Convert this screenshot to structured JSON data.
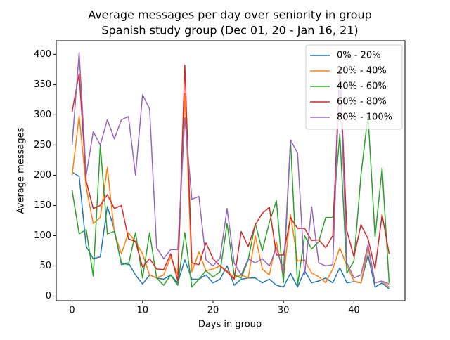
{
  "chart_data": {
    "type": "line",
    "title": "Average messages per day over seniority in group",
    "subtitle": "Spanish study group (Dec 01, 20 - Jan 16, 21)",
    "x_label": "Days in group",
    "y_label": "Average messages",
    "x": [
      0,
      1,
      2,
      3,
      4,
      5,
      6,
      7,
      8,
      9,
      10,
      11,
      12,
      13,
      14,
      15,
      16,
      17,
      18,
      19,
      20,
      21,
      22,
      23,
      24,
      25,
      26,
      27,
      28,
      29,
      30,
      31,
      32,
      33,
      34,
      35,
      36,
      37,
      38,
      39,
      40,
      41,
      42,
      43,
      44,
      45
    ],
    "xlim": [
      -2.25,
      47.25
    ],
    "xticks": [
      0,
      10,
      20,
      30,
      40
    ],
    "ylim": [
      -7.5,
      422.5
    ],
    "yticks": [
      0,
      50,
      100,
      150,
      200,
      250,
      300,
      350,
      400
    ],
    "legend": "upper right",
    "series": [
      {
        "name": "0% - 20%",
        "color": "#1f77b4",
        "values": [
          205,
          198,
          82,
          62,
          65,
          148,
          110,
          52,
          55,
          35,
          20,
          35,
          30,
          28,
          35,
          22,
          60,
          28,
          28,
          35,
          22,
          28,
          50,
          18,
          28,
          30,
          30,
          22,
          28,
          18,
          15,
          38,
          15,
          42,
          22,
          25,
          30,
          22,
          47,
          22,
          24,
          22,
          68,
          15,
          22,
          12
        ]
      },
      {
        "name": "20% - 40%",
        "color": "#ff7f0e",
        "values": [
          200,
          298,
          180,
          120,
          130,
          213,
          105,
          70,
          105,
          90,
          70,
          35,
          30,
          35,
          65,
          35,
          335,
          40,
          73,
          42,
          45,
          50,
          42,
          30,
          35,
          30,
          100,
          45,
          35,
          90,
          30,
          135,
          58,
          60,
          38,
          32,
          22,
          45,
          80,
          50,
          25,
          22,
          80,
          22,
          25,
          15
        ]
      },
      {
        "name": "40% - 60%",
        "color": "#2ca02c",
        "values": [
          175,
          103,
          110,
          33,
          250,
          103,
          107,
          55,
          52,
          105,
          30,
          105,
          30,
          18,
          35,
          18,
          105,
          15,
          28,
          42,
          32,
          40,
          120,
          35,
          30,
          60,
          120,
          75,
          122,
          158,
          22,
          258,
          18,
          100,
          78,
          90,
          130,
          130,
          268,
          38,
          58,
          200,
          300,
          98,
          212,
          22
        ]
      },
      {
        "name": "60% - 80%",
        "color": "#d62728",
        "values": [
          305,
          368,
          190,
          145,
          150,
          168,
          145,
          150,
          95,
          90,
          48,
          62,
          45,
          44,
          70,
          25,
          382,
          55,
          52,
          88,
          62,
          50,
          40,
          28,
          107,
          82,
          118,
          137,
          147,
          68,
          68,
          130,
          112,
          112,
          92,
          93,
          80,
          100,
          380,
          108,
          65,
          118,
          95,
          45,
          135,
          70
        ]
      },
      {
        "name": "80% - 100%",
        "color": "#9467bd",
        "values": [
          250,
          403,
          200,
          272,
          250,
          292,
          260,
          292,
          297,
          200,
          333,
          310,
          80,
          62,
          77,
          77,
          295,
          160,
          165,
          60,
          50,
          63,
          145,
          55,
          35,
          62,
          55,
          62,
          50,
          80,
          40,
          258,
          237,
          35,
          148,
          55,
          50,
          52,
          375,
          55,
          30,
          35,
          85,
          22,
          25,
          20
        ]
      }
    ]
  }
}
